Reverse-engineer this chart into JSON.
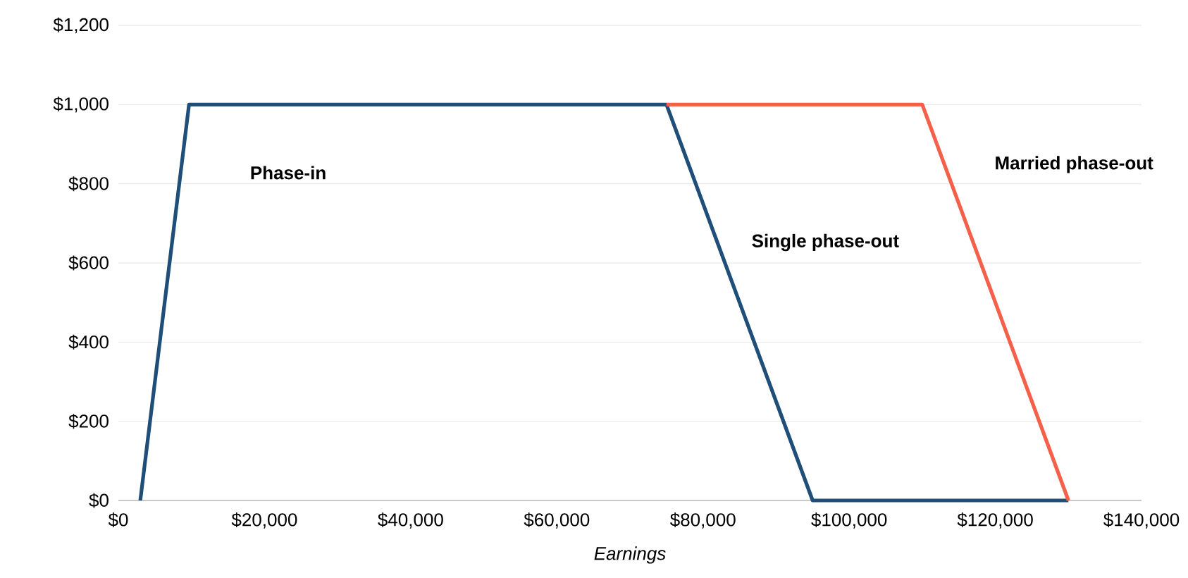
{
  "chart_data": {
    "type": "line",
    "xlabel": "Earnings",
    "series": [
      {
        "color": "#1f4e79",
        "x": [
          3000,
          9667,
          75000,
          95000,
          130000
        ],
        "values": [
          0,
          1000,
          1000,
          0,
          0
        ]
      },
      {
        "color": "#f4604a",
        "x": [
          75000,
          110000,
          130000
        ],
        "values": [
          1000,
          1000,
          0
        ]
      }
    ],
    "xlim": [
      0,
      140000
    ],
    "ylim": [
      0,
      1200
    ],
    "xticks": [
      {
        "value": 0,
        "label": "$0"
      },
      {
        "value": 20000,
        "label": "$20,000"
      },
      {
        "value": 40000,
        "label": "$40,000"
      },
      {
        "value": 60000,
        "label": "$60,000"
      },
      {
        "value": 80000,
        "label": "$80,000"
      },
      {
        "value": 100000,
        "label": "$100,000"
      },
      {
        "value": 120000,
        "label": "$120,000"
      },
      {
        "value": 140000,
        "label": "$140,000"
      }
    ],
    "yticks": [
      {
        "value": 0,
        "label": "$0"
      },
      {
        "value": 200,
        "label": "$200"
      },
      {
        "value": 400,
        "label": "$400"
      },
      {
        "value": 600,
        "label": "$600"
      },
      {
        "value": 800,
        "label": "$800"
      },
      {
        "value": 1000,
        "label": "$1,000"
      },
      {
        "value": 1200,
        "label": "$1,200"
      }
    ],
    "grid": "y",
    "marker": "none",
    "line_style": "solid",
    "annotations": [
      "Phase-in",
      "Single phase-out",
      "Married phase-out"
    ]
  }
}
